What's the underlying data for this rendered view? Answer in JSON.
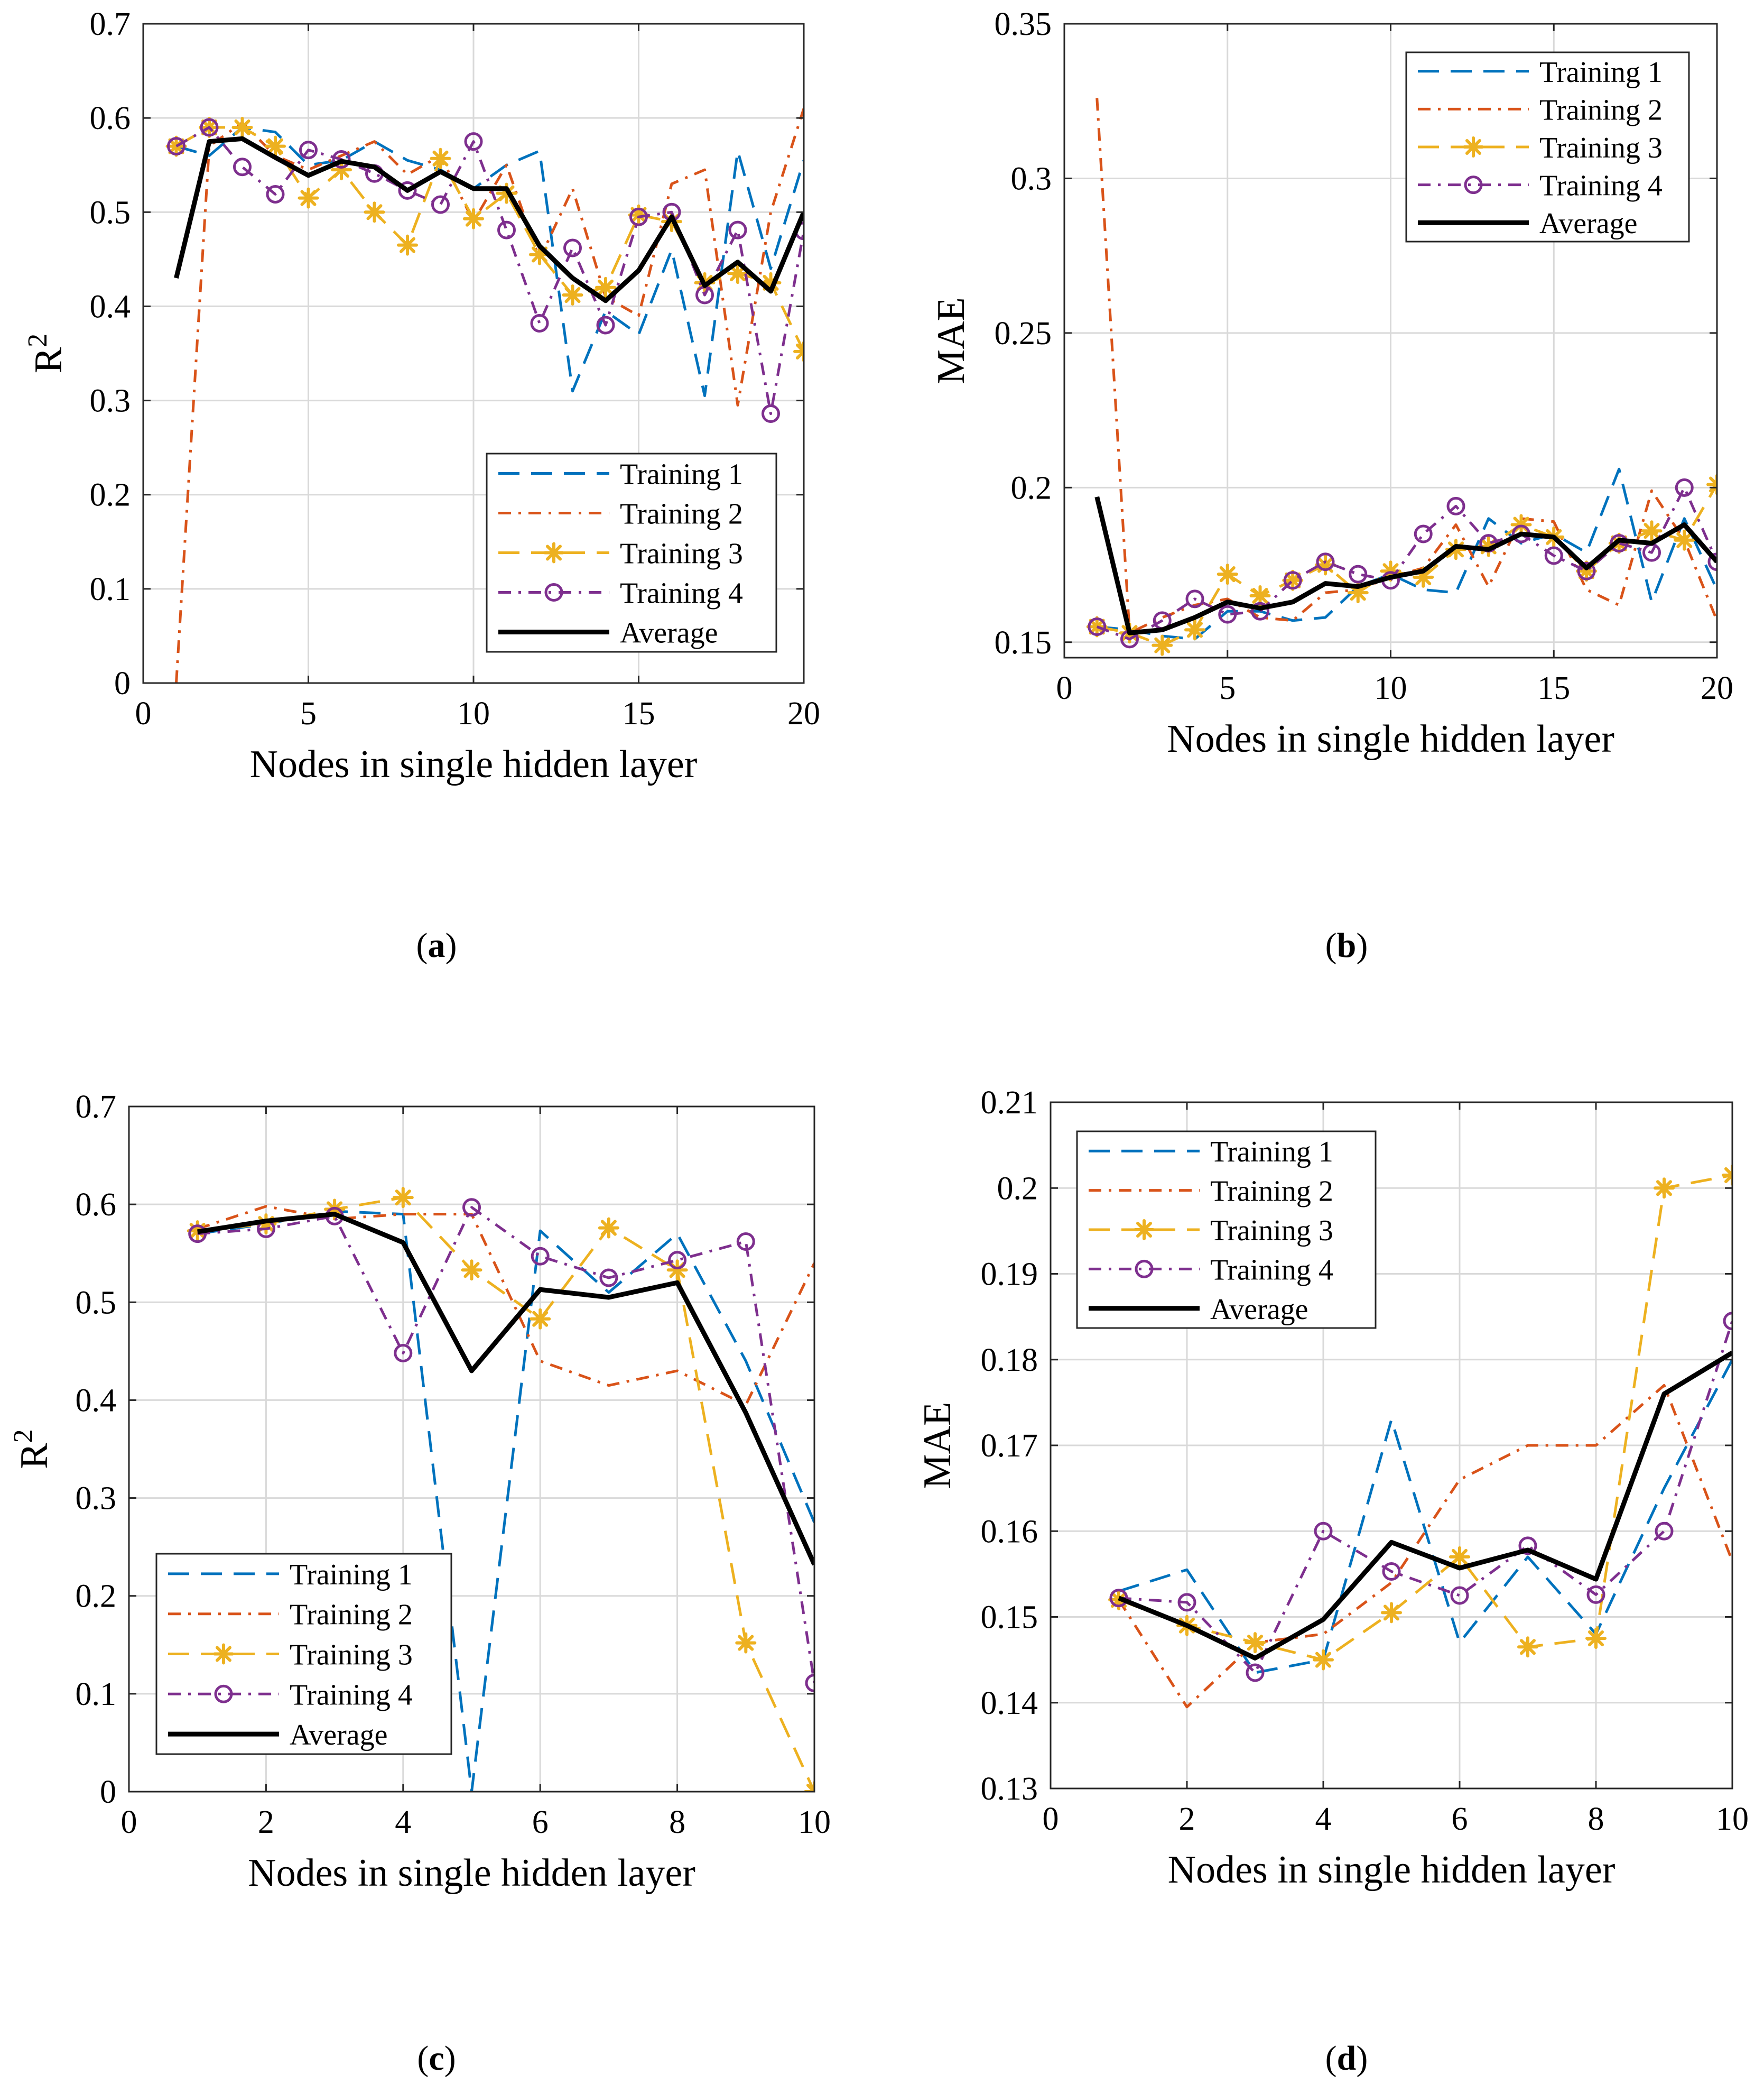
{
  "figure": {
    "colors": {
      "training1": "#0072BD",
      "training2": "#D95319",
      "training3": "#EDB120",
      "training4": "#7E2F8E",
      "average": "#000000",
      "grid": "#d9d9d9",
      "axis": "#262626"
    }
  },
  "chart_data": [
    {
      "panel": "a",
      "type": "line",
      "caption_letter": "a",
      "xlabel": "Nodes in single hidden layer",
      "ylabel": "R",
      "ylabel_sup": "2",
      "xlim": [
        0,
        20
      ],
      "ylim": [
        0,
        0.7
      ],
      "xticks": [
        "0",
        "5",
        "10",
        "15",
        "20"
      ],
      "xtick_values": [
        0,
        5,
        10,
        15,
        20
      ],
      "yticks": [
        "0",
        "0.1",
        "0.2",
        "0.3",
        "0.4",
        "0.5",
        "0.6",
        "0.7"
      ],
      "ytick_values": [
        0,
        0.1,
        0.2,
        0.3,
        0.4,
        0.5,
        0.6,
        0.7
      ],
      "legend_position": "bottom-right",
      "x": [
        1,
        2,
        3,
        4,
        5,
        6,
        7,
        8,
        9,
        10,
        11,
        12,
        13,
        14,
        15,
        16,
        17,
        18,
        19,
        20
      ],
      "series": [
        {
          "name": "Training 1",
          "style": "dashed",
          "marker": "none",
          "values": [
            0.57,
            0.56,
            0.59,
            0.585,
            0.55,
            0.555,
            0.575,
            0.555,
            0.545,
            0.525,
            0.55,
            0.565,
            0.31,
            0.395,
            0.37,
            0.46,
            0.305,
            0.565,
            0.44,
            0.555
          ]
        },
        {
          "name": "Training 2",
          "style": "dashdot",
          "marker": "none",
          "values": [
            0.0,
            0.57,
            0.595,
            0.56,
            0.545,
            0.56,
            0.575,
            0.54,
            0.56,
            0.49,
            0.55,
            0.45,
            0.525,
            0.41,
            0.39,
            0.53,
            0.545,
            0.295,
            0.5,
            0.61
          ]
        },
        {
          "name": "Training 3",
          "style": "dashed",
          "marker": "star",
          "values": [
            0.57,
            0.59,
            0.59,
            0.57,
            0.515,
            0.545,
            0.5,
            0.465,
            0.557,
            0.493,
            0.52,
            0.455,
            0.412,
            0.42,
            0.497,
            0.49,
            0.425,
            0.435,
            0.425,
            0.352
          ]
        },
        {
          "name": "Training 4",
          "style": "dashdot",
          "marker": "circle",
          "values": [
            0.57,
            0.59,
            0.548,
            0.519,
            0.566,
            0.556,
            0.541,
            0.523,
            0.508,
            0.575,
            0.481,
            0.382,
            0.462,
            0.38,
            0.495,
            0.5,
            0.412,
            0.481,
            0.286,
            0.48
          ]
        },
        {
          "name": "Average",
          "style": "solid",
          "marker": "none",
          "values": [
            0.43,
            0.575,
            0.578,
            0.558,
            0.539,
            0.554,
            0.548,
            0.523,
            0.543,
            0.525,
            0.525,
            0.464,
            0.43,
            0.406,
            0.438,
            0.495,
            0.422,
            0.447,
            0.416,
            0.5
          ]
        }
      ]
    },
    {
      "panel": "b",
      "type": "line",
      "caption_letter": "b",
      "xlabel": "Nodes in single hidden layer",
      "ylabel": "MAE",
      "ylabel_sup": "",
      "xlim": [
        0,
        20
      ],
      "ylim": [
        0.145,
        0.35
      ],
      "xticks": [
        "0",
        "5",
        "10",
        "15",
        "20"
      ],
      "xtick_values": [
        0,
        5,
        10,
        15,
        20
      ],
      "yticks": [
        "0.15",
        "0.2",
        "0.25",
        "0.3",
        "0.35"
      ],
      "ytick_values": [
        0.15,
        0.2,
        0.25,
        0.3,
        0.35
      ],
      "legend_position": "top-right",
      "x": [
        1,
        2,
        3,
        4,
        5,
        6,
        7,
        8,
        9,
        10,
        11,
        12,
        13,
        14,
        15,
        16,
        17,
        18,
        19,
        20
      ],
      "series": [
        {
          "name": "Training 1",
          "style": "dashed",
          "marker": "none",
          "values": [
            0.155,
            0.154,
            0.152,
            0.151,
            0.16,
            0.16,
            0.157,
            0.158,
            0.168,
            0.172,
            0.167,
            0.166,
            0.19,
            0.182,
            0.185,
            0.179,
            0.206,
            0.163,
            0.19,
            0.167
          ]
        },
        {
          "name": "Training 2",
          "style": "dashdot",
          "marker": "none",
          "values": [
            0.326,
            0.153,
            0.158,
            0.162,
            0.164,
            0.158,
            0.157,
            0.166,
            0.167,
            0.171,
            0.174,
            0.188,
            0.168,
            0.19,
            0.189,
            0.167,
            0.162,
            0.199,
            0.183,
            0.157
          ]
        },
        {
          "name": "Training 3",
          "style": "dashed",
          "marker": "star",
          "values": [
            0.155,
            0.153,
            0.149,
            0.154,
            0.172,
            0.165,
            0.17,
            0.175,
            0.166,
            0.173,
            0.171,
            0.18,
            0.181,
            0.188,
            0.184,
            0.173,
            0.182,
            0.186,
            0.183,
            0.201
          ]
        },
        {
          "name": "Training 4",
          "style": "dashdot",
          "marker": "circle",
          "values": [
            0.155,
            0.151,
            0.157,
            0.164,
            0.159,
            0.16,
            0.17,
            0.176,
            0.172,
            0.17,
            0.185,
            0.194,
            0.182,
            0.185,
            0.178,
            0.173,
            0.182,
            0.179,
            0.2,
            0.176
          ]
        },
        {
          "name": "Average",
          "style": "solid",
          "marker": "none",
          "values": [
            0.197,
            0.153,
            0.154,
            0.158,
            0.163,
            0.161,
            0.163,
            0.169,
            0.168,
            0.171,
            0.173,
            0.181,
            0.18,
            0.185,
            0.184,
            0.174,
            0.183,
            0.182,
            0.188,
            0.176
          ]
        }
      ]
    },
    {
      "panel": "c",
      "type": "line",
      "caption_letter": "c",
      "xlabel": "Nodes in single hidden layer",
      "ylabel": "R",
      "ylabel_sup": "2",
      "xlim": [
        0,
        10
      ],
      "ylim": [
        0,
        0.7
      ],
      "xticks": [
        "0",
        "2",
        "4",
        "6",
        "8",
        "10"
      ],
      "xtick_values": [
        0,
        2,
        4,
        6,
        8,
        10
      ],
      "yticks": [
        "0",
        "0.1",
        "0.2",
        "0.3",
        "0.4",
        "0.5",
        "0.6",
        "0.7"
      ],
      "ytick_values": [
        0,
        0.1,
        0.2,
        0.3,
        0.4,
        0.5,
        0.6,
        0.7
      ],
      "legend_position": "bottom-left",
      "x": [
        1,
        2,
        3,
        4,
        5,
        6,
        7,
        8,
        9,
        10
      ],
      "series": [
        {
          "name": "Training 1",
          "style": "dashed",
          "marker": "none",
          "values": [
            0.57,
            0.58,
            0.593,
            0.59,
            0.0,
            0.573,
            0.51,
            0.57,
            0.44,
            0.275
          ]
        },
        {
          "name": "Training 2",
          "style": "dashdot",
          "marker": "none",
          "values": [
            0.575,
            0.598,
            0.585,
            0.59,
            0.59,
            0.44,
            0.415,
            0.43,
            0.395,
            0.54
          ]
        },
        {
          "name": "Training 3",
          "style": "dashed",
          "marker": "star",
          "values": [
            0.573,
            0.58,
            0.595,
            0.607,
            0.533,
            0.483,
            0.576,
            0.533,
            0.152,
            0.0
          ]
        },
        {
          "name": "Training 4",
          "style": "dashdot",
          "marker": "circle",
          "values": [
            0.57,
            0.575,
            0.588,
            0.448,
            0.597,
            0.547,
            0.525,
            0.543,
            0.562,
            0.111
          ]
        },
        {
          "name": "Average",
          "style": "solid",
          "marker": "none",
          "values": [
            0.572,
            0.583,
            0.59,
            0.561,
            0.43,
            0.513,
            0.505,
            0.52,
            0.387,
            0.232
          ]
        }
      ]
    },
    {
      "panel": "d",
      "type": "line",
      "caption_letter": "d",
      "xlabel": "Nodes in single hidden layer",
      "ylabel": "MAE",
      "ylabel_sup": "",
      "xlim": [
        0,
        10
      ],
      "ylim": [
        0.13,
        0.21
      ],
      "xticks": [
        "0",
        "2",
        "4",
        "6",
        "8",
        "10"
      ],
      "xtick_values": [
        0,
        2,
        4,
        6,
        8,
        10
      ],
      "yticks": [
        "0.13",
        "0.14",
        "0.15",
        "0.16",
        "0.17",
        "0.18",
        "0.19",
        "0.2",
        "0.21"
      ],
      "ytick_values": [
        0.13,
        0.14,
        0.15,
        0.16,
        0.17,
        0.18,
        0.19,
        0.2,
        0.21
      ],
      "legend_position": "top-left",
      "x": [
        1,
        2,
        3,
        4,
        5,
        6,
        7,
        8,
        9,
        10
      ],
      "series": [
        {
          "name": "Training 1",
          "style": "dashed",
          "marker": "none",
          "values": [
            0.153,
            0.1555,
            0.1435,
            0.145,
            0.173,
            0.147,
            0.157,
            0.148,
            0.165,
            0.18
          ]
        },
        {
          "name": "Training 2",
          "style": "dashdot",
          "marker": "none",
          "values": [
            0.152,
            0.1395,
            0.147,
            0.148,
            0.154,
            0.166,
            0.17,
            0.17,
            0.177,
            0.1565
          ]
        },
        {
          "name": "Training 3",
          "style": "dashed",
          "marker": "star",
          "values": [
            0.152,
            0.149,
            0.147,
            0.145,
            0.1505,
            0.157,
            0.1465,
            0.1475,
            0.2,
            0.2015
          ]
        },
        {
          "name": "Training 4",
          "style": "dashdot",
          "marker": "circle",
          "values": [
            0.1522,
            0.1517,
            0.1435,
            0.16,
            0.1553,
            0.1525,
            0.1583,
            0.1526,
            0.16,
            0.1845
          ]
        },
        {
          "name": "Average",
          "style": "solid",
          "marker": "none",
          "values": [
            0.1522,
            0.149,
            0.1452,
            0.1497,
            0.1587,
            0.1557,
            0.1578,
            0.1544,
            0.176,
            0.1808
          ]
        }
      ]
    }
  ]
}
